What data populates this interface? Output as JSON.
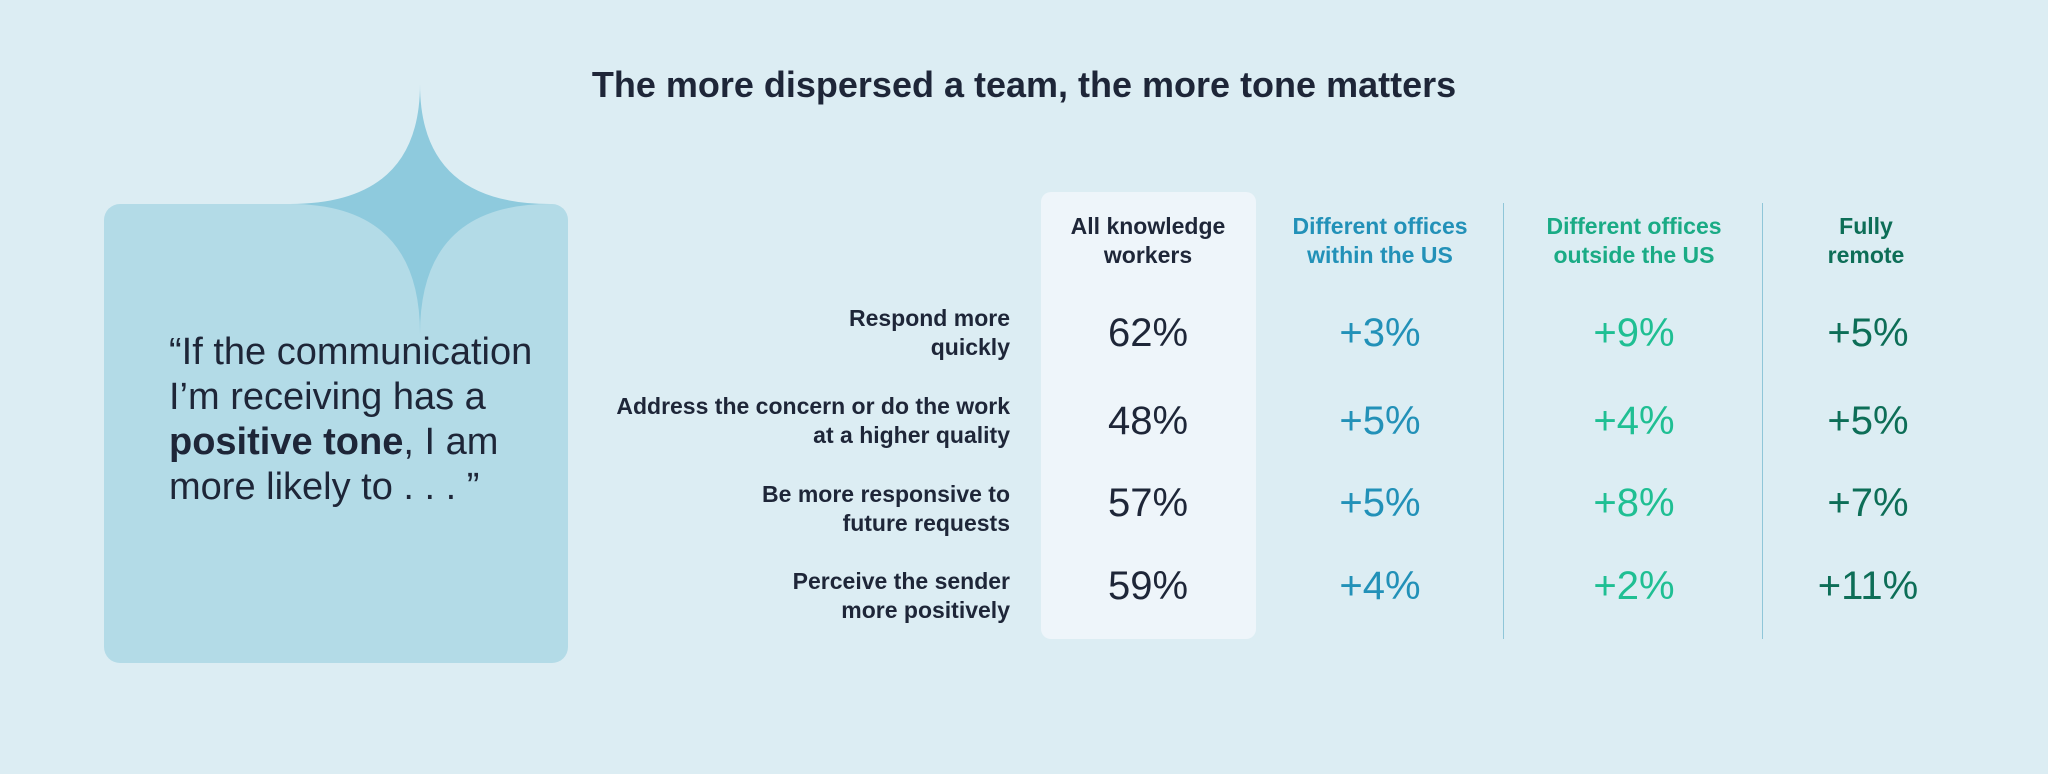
{
  "chart_data": {
    "type": "table",
    "title": "The more dispersed a team, the more tone matters",
    "quote": {
      "before": "“If the communication I’m receiving has a ",
      "bold": "positive tone",
      "after": ", I am more likely to . . . ”"
    },
    "columns": [
      {
        "label": "All knowledge workers",
        "color": "#1e2638"
      },
      {
        "label": "Different offices within the US",
        "color": "#2291b8"
      },
      {
        "label": "Different offices outside the US",
        "color": "#1aab85"
      },
      {
        "label": "Fully remote",
        "color": "#0d6e57"
      }
    ],
    "rows": [
      {
        "label": "Respond more quickly",
        "values": [
          "62%",
          "+3%",
          "+9%",
          "+5%"
        ]
      },
      {
        "label": "Address the concern or do the work at a higher quality",
        "values": [
          "48%",
          "+5%",
          "+4%",
          "+5%"
        ]
      },
      {
        "label": "Be more responsive to future requests",
        "values": [
          "57%",
          "+5%",
          "+8%",
          "+7%"
        ]
      },
      {
        "label": "Perceive the sender more positively",
        "values": [
          "59%",
          "+4%",
          "+2%",
          "+11%"
        ]
      }
    ]
  },
  "colors": {
    "background": "#dcedf3",
    "card": "#b3dbe7",
    "sparkle": "#8ecadd",
    "highlight_column": "#eef5fa",
    "divider": "#8fc6d8",
    "text": "#1e2638"
  }
}
